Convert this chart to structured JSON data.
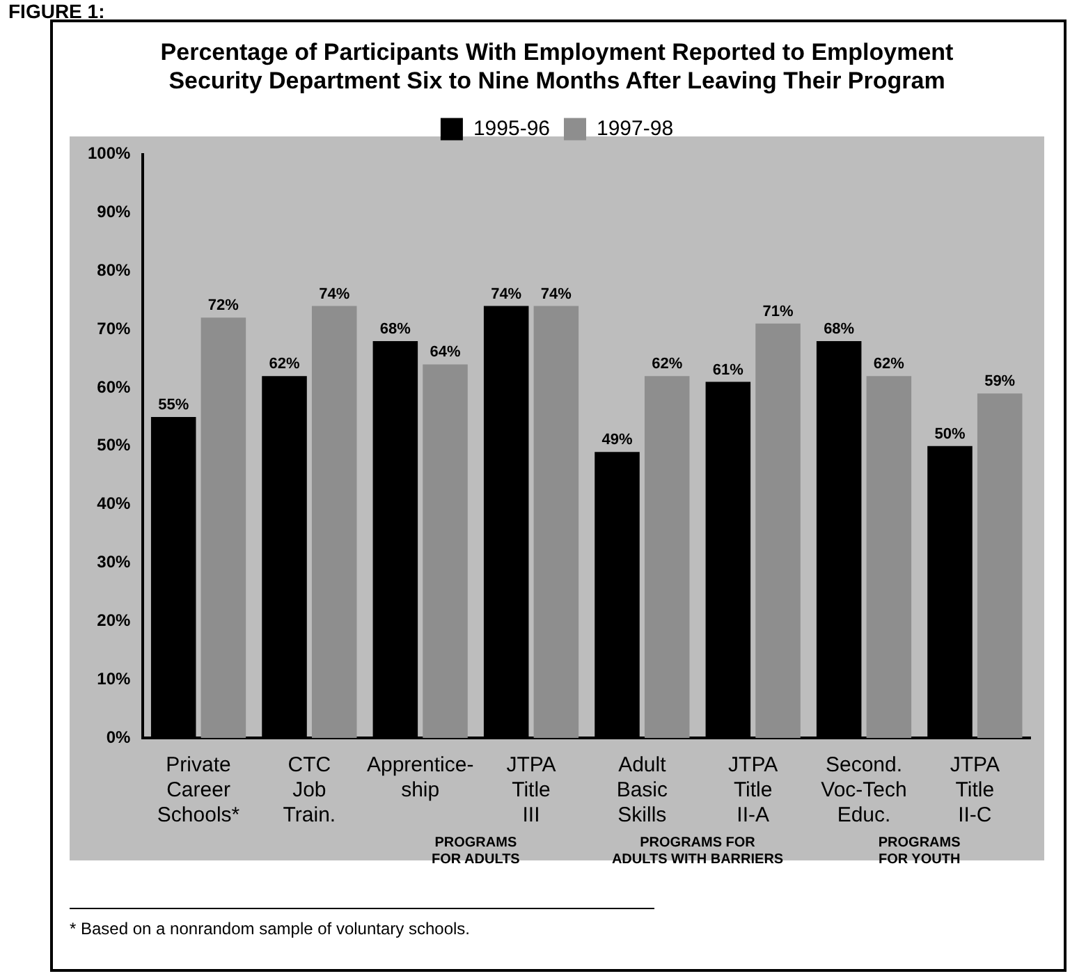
{
  "chart_data": {
    "type": "bar",
    "title": [
      "Percentage of Participants With Employment Reported to Employment",
      "Security Department Six to Nine Months After Leaving Their Program"
    ],
    "categories": [
      "Private\nCareer\nSchools*",
      "CTC\nJob\nTrain.",
      "Apprentice-\nship",
      "JTPA\nTitle\nIII",
      "Adult\nBasic\nSkills",
      "JTPA\nTitle\nII-A",
      "Second.\nVoc-Tech\nEduc.",
      "JTPA\nTitle\nII-C"
    ],
    "series": [
      {
        "name": "1995-96",
        "color": "#000000",
        "values": [
          55,
          62,
          68,
          74,
          49,
          61,
          68,
          50
        ]
      },
      {
        "name": "1997-98",
        "color": "#8e8e8e",
        "values": [
          72,
          74,
          64,
          74,
          62,
          71,
          62,
          59
        ]
      }
    ],
    "ylim": [
      0,
      100
    ],
    "yticks": [
      {
        "value": 0,
        "label": "0%"
      },
      {
        "value": 10,
        "label": "10%"
      },
      {
        "value": 20,
        "label": "20%"
      },
      {
        "value": 30,
        "label": "30%"
      },
      {
        "value": 40,
        "label": "40%"
      },
      {
        "value": 50,
        "label": "50%"
      },
      {
        "value": 60,
        "label": "60%"
      },
      {
        "value": 70,
        "label": "70%"
      },
      {
        "value": 80,
        "label": "80%"
      },
      {
        "value": 90,
        "label": "90%"
      },
      {
        "value": 100,
        "label": "100%"
      }
    ],
    "value_labels": [
      [
        "55%",
        "62%",
        "68%",
        "74%",
        "49%",
        "61%",
        "68%",
        "50%"
      ],
      [
        "72%",
        "74%",
        "64%",
        "74%",
        "62%",
        "71%",
        "62%",
        "59%"
      ]
    ],
    "legend": "top",
    "annotations": [
      "FIGURE 1:",
      "PROGRAMS\nFOR ADULTS",
      "PROGRAMS FOR\nADULTS WITH BARRIERS",
      "PROGRAMS\nFOR YOUTH",
      "* Based on a nonrandom sample of voluntary schools."
    ]
  }
}
